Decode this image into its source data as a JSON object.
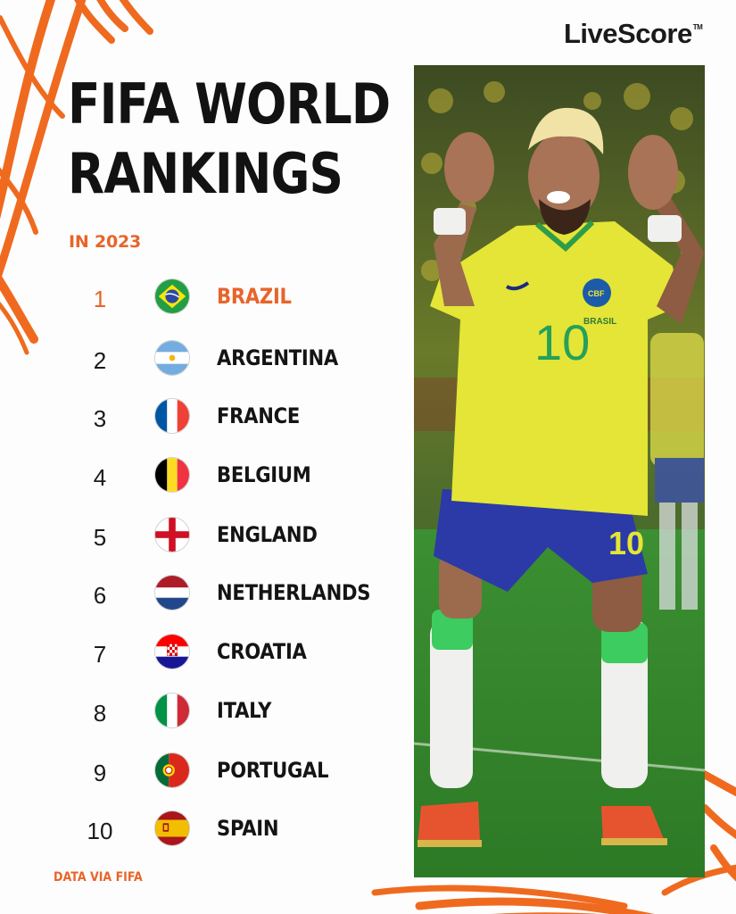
{
  "brand": {
    "name": "LiveScore",
    "trademark": "TM"
  },
  "header": {
    "title_line1": "FIFA WORLD",
    "title_line2": "RANKINGS",
    "subtitle": "IN 2023"
  },
  "rankings": [
    {
      "rank": "1",
      "country": "BRAZIL",
      "flag_icon": "brazil-flag-icon"
    },
    {
      "rank": "2",
      "country": "ARGENTINA",
      "flag_icon": "argentina-flag-icon"
    },
    {
      "rank": "3",
      "country": "FRANCE",
      "flag_icon": "france-flag-icon"
    },
    {
      "rank": "4",
      "country": "BELGIUM",
      "flag_icon": "belgium-flag-icon"
    },
    {
      "rank": "5",
      "country": "ENGLAND",
      "flag_icon": "england-flag-icon"
    },
    {
      "rank": "6",
      "country": "NETHERLANDS",
      "flag_icon": "netherlands-flag-icon"
    },
    {
      "rank": "7",
      "country": "CROATIA",
      "flag_icon": "croatia-flag-icon"
    },
    {
      "rank": "8",
      "country": "ITALY",
      "flag_icon": "italy-flag-icon"
    },
    {
      "rank": "9",
      "country": "PORTUGAL",
      "flag_icon": "portugal-flag-icon"
    },
    {
      "rank": "10",
      "country": "SPAIN",
      "flag_icon": "spain-flag-icon"
    }
  ],
  "footer": {
    "source": "DATA VIA FIFA"
  },
  "photo": {
    "jersey_number": "10",
    "crest_text": "CBF",
    "jersey_label": "BRASIL"
  },
  "colors": {
    "accent": "#e8642a",
    "text": "#141414",
    "jersey_yellow": "#e4e536",
    "shorts_blue": "#2b3aa6",
    "pitch_green": "#3c8a2e"
  }
}
